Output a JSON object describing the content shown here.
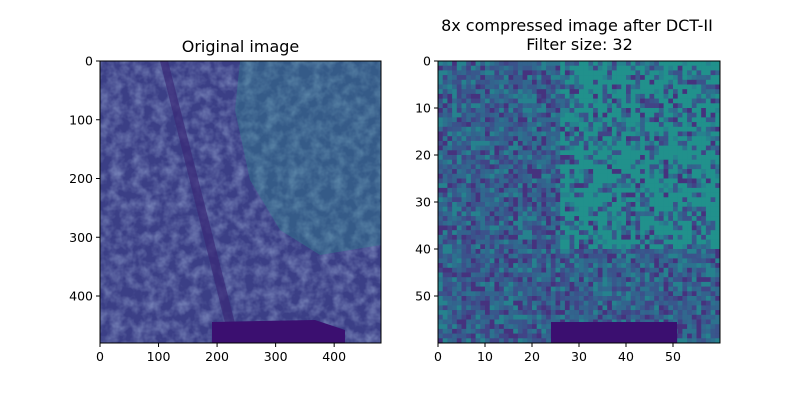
{
  "chart_data": [
    {
      "type": "heatmap",
      "title": "Original image",
      "xlabel": "",
      "ylabel": "",
      "image_size": [
        480,
        480
      ],
      "xlim": [
        0,
        480
      ],
      "ylim": [
        480,
        0
      ],
      "xticks": [
        0,
        100,
        200,
        300,
        400
      ],
      "yticks": [
        0,
        100,
        200,
        300,
        400
      ],
      "colormap": "viridis",
      "grid": false,
      "content": "satellite imagery of urban area"
    },
    {
      "type": "heatmap",
      "title": "8x compressed image after DCT-II\nFilter size: 32",
      "title_lines": [
        "8x compressed image after DCT-II",
        "Filter size: 32"
      ],
      "xlabel": "",
      "ylabel": "",
      "image_size": [
        60,
        60
      ],
      "xlim": [
        0,
        60
      ],
      "ylim": [
        60,
        0
      ],
      "xticks": [
        0,
        10,
        20,
        30,
        40,
        50
      ],
      "yticks": [
        0,
        10,
        20,
        30,
        40,
        50
      ],
      "colormap": "viridis",
      "grid": false,
      "content": "compressed satellite imagery"
    }
  ]
}
